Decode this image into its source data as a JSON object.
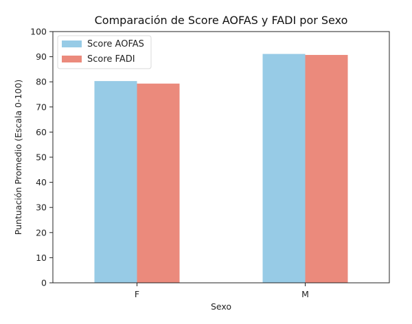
{
  "chart_data": {
    "type": "bar",
    "title": "Comparación de Score AOFAS y FADI por Sexo",
    "xlabel": "Sexo",
    "ylabel": "Puntuación Promedio (Escala 0-100)",
    "categories": [
      "F",
      "M"
    ],
    "series": [
      {
        "name": "Score AOFAS",
        "values": [
          80.3,
          91.1
        ],
        "color": "#97cbe6"
      },
      {
        "name": "Score FADI",
        "values": [
          79.3,
          90.7
        ],
        "color": "#eb8a7c"
      }
    ],
    "ylim": [
      0,
      100
    ],
    "yticks": [
      0,
      10,
      20,
      30,
      40,
      50,
      60,
      70,
      80,
      90,
      100
    ],
    "grid": false,
    "legend_position": "top-left"
  }
}
